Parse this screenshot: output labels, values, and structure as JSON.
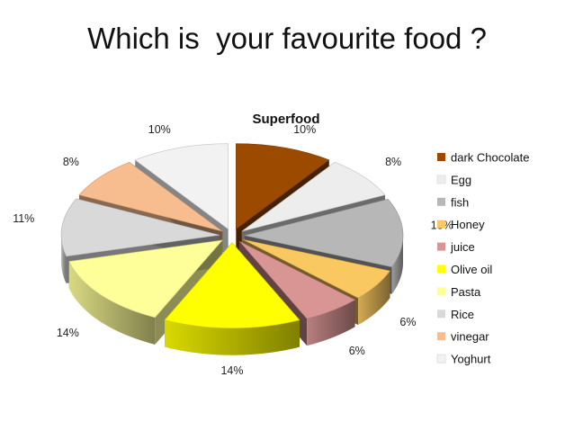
{
  "slide": {
    "title": "Which is  your favourite food ?"
  },
  "chart_data": {
    "type": "pie",
    "title": "Superfood",
    "exploded": true,
    "three_d": true,
    "legend_position": "right",
    "slices": [
      {
        "label": "dark Chocolate",
        "value": 10,
        "display": "10%",
        "color": "#9B4A00"
      },
      {
        "label": "Egg",
        "value": 8,
        "display": "8%",
        "color": "#EDEDED"
      },
      {
        "label": "fish",
        "value": 13,
        "display": "13%",
        "color": "#B7B7B7"
      },
      {
        "label": "Honey",
        "value": 6,
        "display": "6%",
        "color": "#FAC860"
      },
      {
        "label": "juice",
        "value": 6,
        "display": "6%",
        "color": "#D99594"
      },
      {
        "label": "Olive oil",
        "value": 14,
        "display": "14%",
        "color": "#FFFF00"
      },
      {
        "label": "Pasta",
        "value": 14,
        "display": "14%",
        "color": "#FFFF99"
      },
      {
        "label": "Rice",
        "value": 11,
        "display": "11%",
        "color": "#D9D9D9"
      },
      {
        "label": "vinegar",
        "value": 8,
        "display": "8%",
        "color": "#F8BD8F"
      },
      {
        "label": "Yoghurt",
        "value": 10,
        "display": "10%",
        "color": "#F2F2F2"
      }
    ]
  }
}
